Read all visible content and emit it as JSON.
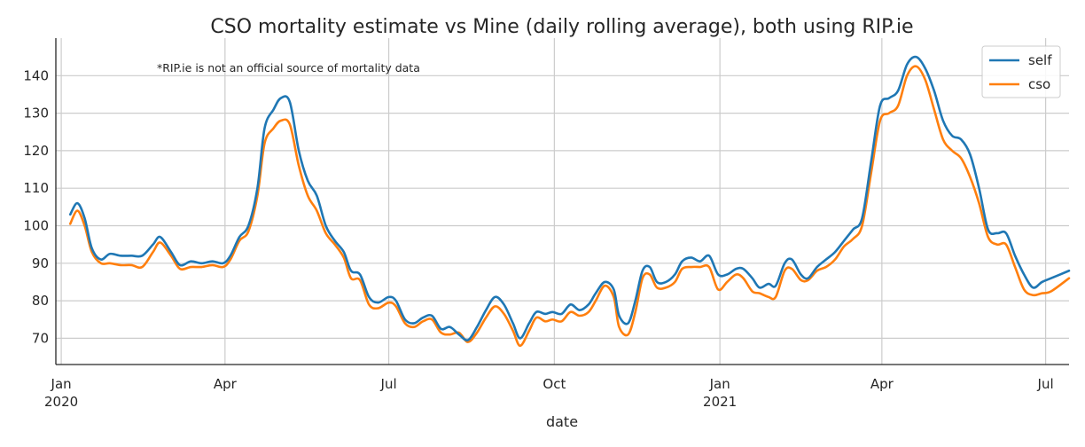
{
  "chart_data": {
    "type": "line",
    "title": "CSO mortality estimate vs Mine (daily rolling average), both using RIP.ie",
    "xlabel": "date",
    "ylabel": "",
    "annotation": "*RIP.ie is not an official source of mortality data",
    "grid": true,
    "legend_position": "top-right",
    "x_range": [
      "2019-12-29",
      "2021-07-14"
    ],
    "ylim": [
      63,
      150
    ],
    "y_ticks": [
      70,
      80,
      90,
      100,
      110,
      120,
      130,
      140
    ],
    "x_ticks": [
      {
        "date": "2020-01-01",
        "label": "Jan",
        "sublabel": "2020"
      },
      {
        "date": "2020-04-01",
        "label": "Apr",
        "sublabel": ""
      },
      {
        "date": "2020-07-01",
        "label": "Jul",
        "sublabel": ""
      },
      {
        "date": "2020-10-01",
        "label": "Oct",
        "sublabel": ""
      },
      {
        "date": "2021-01-01",
        "label": "Jan",
        "sublabel": "2021"
      },
      {
        "date": "2021-04-01",
        "label": "Apr",
        "sublabel": ""
      },
      {
        "date": "2021-07-01",
        "label": "Jul",
        "sublabel": ""
      }
    ],
    "series": [
      {
        "name": "self",
        "color": "#1f77b4",
        "points": [
          [
            "2020-01-06",
            103
          ],
          [
            "2020-01-10",
            106
          ],
          [
            "2020-01-14",
            102
          ],
          [
            "2020-01-18",
            94
          ],
          [
            "2020-01-23",
            91
          ],
          [
            "2020-01-28",
            92.5
          ],
          [
            "2020-02-03",
            92
          ],
          [
            "2020-02-09",
            92
          ],
          [
            "2020-02-15",
            92
          ],
          [
            "2020-02-21",
            95
          ],
          [
            "2020-02-25",
            97
          ],
          [
            "2020-03-02",
            93
          ],
          [
            "2020-03-07",
            89.5
          ],
          [
            "2020-03-13",
            90.5
          ],
          [
            "2020-03-19",
            90
          ],
          [
            "2020-03-25",
            90.5
          ],
          [
            "2020-03-31",
            90
          ],
          [
            "2020-04-04",
            92
          ],
          [
            "2020-04-09",
            97
          ],
          [
            "2020-04-14",
            100
          ],
          [
            "2020-04-19",
            110
          ],
          [
            "2020-04-23",
            126
          ],
          [
            "2020-04-28",
            131
          ],
          [
            "2020-05-02",
            134
          ],
          [
            "2020-05-07",
            133
          ],
          [
            "2020-05-12",
            120
          ],
          [
            "2020-05-17",
            112
          ],
          [
            "2020-05-22",
            108
          ],
          [
            "2020-05-27",
            100
          ],
          [
            "2020-06-01",
            96
          ],
          [
            "2020-06-06",
            93
          ],
          [
            "2020-06-10",
            88
          ],
          [
            "2020-06-15",
            87
          ],
          [
            "2020-06-20",
            81
          ],
          [
            "2020-06-25",
            79.5
          ],
          [
            "2020-07-01",
            81
          ],
          [
            "2020-07-05",
            80
          ],
          [
            "2020-07-10",
            75
          ],
          [
            "2020-07-15",
            74
          ],
          [
            "2020-07-20",
            75.5
          ],
          [
            "2020-07-25",
            76
          ],
          [
            "2020-07-30",
            72.5
          ],
          [
            "2020-08-04",
            73
          ],
          [
            "2020-08-09",
            71
          ],
          [
            "2020-08-14",
            69.5
          ],
          [
            "2020-08-19",
            73
          ],
          [
            "2020-08-24",
            77.5
          ],
          [
            "2020-08-29",
            81
          ],
          [
            "2020-09-03",
            79
          ],
          [
            "2020-09-08",
            74
          ],
          [
            "2020-09-12",
            70
          ],
          [
            "2020-09-17",
            74
          ],
          [
            "2020-09-21",
            77
          ],
          [
            "2020-09-26",
            76.5
          ],
          [
            "2020-09-30",
            77
          ],
          [
            "2020-10-05",
            76.5
          ],
          [
            "2020-10-10",
            79
          ],
          [
            "2020-10-15",
            77.5
          ],
          [
            "2020-10-20",
            79
          ],
          [
            "2020-10-24",
            82
          ],
          [
            "2020-10-29",
            85
          ],
          [
            "2020-11-03",
            83
          ],
          [
            "2020-11-06",
            76
          ],
          [
            "2020-11-11",
            74
          ],
          [
            "2020-11-15",
            80
          ],
          [
            "2020-11-19",
            88
          ],
          [
            "2020-11-23",
            89
          ],
          [
            "2020-11-27",
            85
          ],
          [
            "2020-12-02",
            85
          ],
          [
            "2020-12-07",
            87
          ],
          [
            "2020-12-11",
            90.5
          ],
          [
            "2020-12-16",
            91.5
          ],
          [
            "2020-12-21",
            90.5
          ],
          [
            "2020-12-26",
            92
          ],
          [
            "2020-12-31",
            87
          ],
          [
            "2021-01-05",
            87
          ],
          [
            "2021-01-10",
            88.5
          ],
          [
            "2021-01-14",
            88.5
          ],
          [
            "2021-01-19",
            86
          ],
          [
            "2021-01-23",
            83.5
          ],
          [
            "2021-01-28",
            84.5
          ],
          [
            "2021-02-01",
            84
          ],
          [
            "2021-02-06",
            90
          ],
          [
            "2021-02-10",
            91
          ],
          [
            "2021-02-15",
            87
          ],
          [
            "2021-02-19",
            86
          ],
          [
            "2021-02-24",
            89
          ],
          [
            "2021-03-01",
            91
          ],
          [
            "2021-03-06",
            93
          ],
          [
            "2021-03-11",
            96
          ],
          [
            "2021-03-16",
            99
          ],
          [
            "2021-03-21",
            102
          ],
          [
            "2021-03-26",
            117
          ],
          [
            "2021-03-31",
            132
          ],
          [
            "2021-04-05",
            134
          ],
          [
            "2021-04-10",
            136
          ],
          [
            "2021-04-15",
            143
          ],
          [
            "2021-04-20",
            145
          ],
          [
            "2021-04-25",
            142
          ],
          [
            "2021-04-30",
            136
          ],
          [
            "2021-05-05",
            128
          ],
          [
            "2021-05-10",
            124
          ],
          [
            "2021-05-15",
            123
          ],
          [
            "2021-05-20",
            119
          ],
          [
            "2021-05-25",
            110
          ],
          [
            "2021-05-30",
            99
          ],
          [
            "2021-06-04",
            98
          ],
          [
            "2021-06-09",
            98
          ],
          [
            "2021-06-14",
            92
          ],
          [
            "2021-06-19",
            87
          ],
          [
            "2021-06-24",
            83.5
          ],
          [
            "2021-06-29",
            85
          ],
          [
            "2021-07-04",
            86
          ],
          [
            "2021-07-14",
            88
          ]
        ]
      },
      {
        "name": "cso",
        "color": "#ff7f0e",
        "points": [
          [
            "2020-01-06",
            100.5
          ],
          [
            "2020-01-10",
            104
          ],
          [
            "2020-01-14",
            100
          ],
          [
            "2020-01-18",
            93
          ],
          [
            "2020-01-23",
            90
          ],
          [
            "2020-01-28",
            90
          ],
          [
            "2020-02-03",
            89.5
          ],
          [
            "2020-02-09",
            89.5
          ],
          [
            "2020-02-15",
            89
          ],
          [
            "2020-02-21",
            93
          ],
          [
            "2020-02-25",
            95.5
          ],
          [
            "2020-03-02",
            92
          ],
          [
            "2020-03-07",
            88.5
          ],
          [
            "2020-03-13",
            89
          ],
          [
            "2020-03-19",
            89
          ],
          [
            "2020-03-25",
            89.5
          ],
          [
            "2020-03-31",
            89
          ],
          [
            "2020-04-04",
            91
          ],
          [
            "2020-04-09",
            96
          ],
          [
            "2020-04-14",
            98.5
          ],
          [
            "2020-04-19",
            108
          ],
          [
            "2020-04-23",
            122
          ],
          [
            "2020-04-28",
            126
          ],
          [
            "2020-05-02",
            128
          ],
          [
            "2020-05-07",
            127
          ],
          [
            "2020-05-12",
            116
          ],
          [
            "2020-05-17",
            108
          ],
          [
            "2020-05-22",
            104
          ],
          [
            "2020-05-27",
            98
          ],
          [
            "2020-06-01",
            95
          ],
          [
            "2020-06-06",
            91.5
          ],
          [
            "2020-06-10",
            86
          ],
          [
            "2020-06-15",
            85.5
          ],
          [
            "2020-06-20",
            79
          ],
          [
            "2020-06-25",
            78
          ],
          [
            "2020-07-01",
            79.5
          ],
          [
            "2020-07-05",
            78.5
          ],
          [
            "2020-07-10",
            74
          ],
          [
            "2020-07-15",
            73
          ],
          [
            "2020-07-20",
            74.5
          ],
          [
            "2020-07-25",
            75
          ],
          [
            "2020-07-30",
            71.5
          ],
          [
            "2020-08-04",
            71
          ],
          [
            "2020-08-09",
            71.5
          ],
          [
            "2020-08-14",
            69
          ],
          [
            "2020-08-19",
            71.5
          ],
          [
            "2020-08-24",
            75.5
          ],
          [
            "2020-08-29",
            78.5
          ],
          [
            "2020-09-03",
            76.5
          ],
          [
            "2020-09-08",
            72
          ],
          [
            "2020-09-12",
            68
          ],
          [
            "2020-09-17",
            72
          ],
          [
            "2020-09-21",
            75.5
          ],
          [
            "2020-09-26",
            74.5
          ],
          [
            "2020-09-30",
            75
          ],
          [
            "2020-10-05",
            74.5
          ],
          [
            "2020-10-10",
            77
          ],
          [
            "2020-10-15",
            76
          ],
          [
            "2020-10-20",
            77
          ],
          [
            "2020-10-24",
            80
          ],
          [
            "2020-10-29",
            84
          ],
          [
            "2020-11-03",
            81
          ],
          [
            "2020-11-06",
            73
          ],
          [
            "2020-11-11",
            71
          ],
          [
            "2020-11-15",
            77
          ],
          [
            "2020-11-19",
            86
          ],
          [
            "2020-11-23",
            87
          ],
          [
            "2020-11-27",
            83.5
          ],
          [
            "2020-12-02",
            83.5
          ],
          [
            "2020-12-07",
            85
          ],
          [
            "2020-12-11",
            88.5
          ],
          [
            "2020-12-16",
            89
          ],
          [
            "2020-12-21",
            89
          ],
          [
            "2020-12-26",
            89
          ],
          [
            "2020-12-31",
            83
          ],
          [
            "2021-01-05",
            85
          ],
          [
            "2021-01-10",
            87
          ],
          [
            "2021-01-14",
            86
          ],
          [
            "2021-01-19",
            82.5
          ],
          [
            "2021-01-23",
            82
          ],
          [
            "2021-01-28",
            81
          ],
          [
            "2021-02-01",
            81
          ],
          [
            "2021-02-06",
            88
          ],
          [
            "2021-02-10",
            88.5
          ],
          [
            "2021-02-15",
            85.5
          ],
          [
            "2021-02-19",
            85.5
          ],
          [
            "2021-02-24",
            88
          ],
          [
            "2021-03-01",
            89
          ],
          [
            "2021-03-06",
            91
          ],
          [
            "2021-03-11",
            94.5
          ],
          [
            "2021-03-16",
            96.5
          ],
          [
            "2021-03-21",
            100
          ],
          [
            "2021-03-26",
            114
          ],
          [
            "2021-03-31",
            128
          ],
          [
            "2021-04-05",
            130
          ],
          [
            "2021-04-10",
            132
          ],
          [
            "2021-04-15",
            140
          ],
          [
            "2021-04-20",
            142.5
          ],
          [
            "2021-04-25",
            139
          ],
          [
            "2021-04-30",
            131
          ],
          [
            "2021-05-05",
            123
          ],
          [
            "2021-05-10",
            120
          ],
          [
            "2021-05-15",
            118
          ],
          [
            "2021-05-20",
            113
          ],
          [
            "2021-05-25",
            106
          ],
          [
            "2021-05-30",
            97
          ],
          [
            "2021-06-04",
            95
          ],
          [
            "2021-06-09",
            95
          ],
          [
            "2021-06-14",
            89
          ],
          [
            "2021-06-19",
            83
          ],
          [
            "2021-06-24",
            81.5
          ],
          [
            "2021-06-29",
            82
          ],
          [
            "2021-07-04",
            82.5
          ],
          [
            "2021-07-14",
            86
          ]
        ]
      }
    ]
  }
}
